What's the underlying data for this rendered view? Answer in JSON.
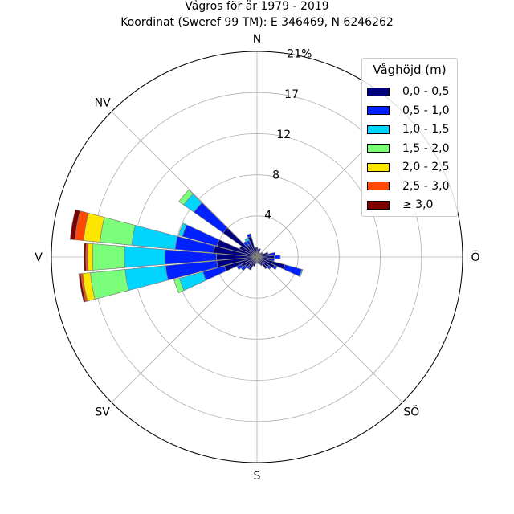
{
  "title_line1": "Vågros för år 1979 - 2019",
  "title_line2": "Koordinat (Sweref 99 TM): E 346469, N 6246262",
  "chart_data": {
    "type": "polar-stacked-bar",
    "title": "Vågros för år 1979 - 2019",
    "subtitle": "Koordinat (Sweref 99 TM): E 346469, N 6246262",
    "directions": [
      "N",
      "NV",
      "V",
      "SV",
      "S",
      "SÖ",
      "Ö",
      ""
    ],
    "radial_ticks": [
      "4",
      "8",
      "12",
      "17",
      "21%"
    ],
    "radial_tick_values": [
      4.25,
      8.5,
      12.75,
      17,
      21.25
    ],
    "rmax": 21.25,
    "grid": true,
    "legend": {
      "title": "Våghöjd (m)",
      "placement": "top-right",
      "items": [
        {
          "label": "0,0 - 0,5",
          "color": "#00007f"
        },
        {
          "label": "0,5 - 1,0",
          "color": "#0020ff"
        },
        {
          "label": "1,0 - 1,5",
          "color": "#00d4ff"
        },
        {
          "label": "1,5 - 2,0",
          "color": "#7bff7b"
        },
        {
          "label": "2,0 - 2,5",
          "color": "#ffe600"
        },
        {
          "label": "2,5 - 3,0",
          "color": "#ff4800"
        },
        {
          "label": "≥ 3,0",
          "color": "#7f0000"
        }
      ]
    },
    "sector_width_deg": 10,
    "sectors": [
      {
        "direction_deg": 0,
        "values": [
          1.0
        ]
      },
      {
        "direction_deg": 10,
        "values": [
          0.8
        ]
      },
      {
        "direction_deg": 20,
        "values": [
          0.7,
          0.2
        ]
      },
      {
        "direction_deg": 30,
        "values": [
          0.5
        ]
      },
      {
        "direction_deg": 40,
        "values": [
          0.5
        ]
      },
      {
        "direction_deg": 50,
        "values": [
          0.7
        ]
      },
      {
        "direction_deg": 60,
        "values": [
          0.7
        ]
      },
      {
        "direction_deg": 70,
        "values": [
          1.2
        ]
      },
      {
        "direction_deg": 80,
        "values": [
          1.5,
          0.4
        ]
      },
      {
        "direction_deg": 90,
        "values": [
          1.8,
          0.6
        ]
      },
      {
        "direction_deg": 100,
        "values": [
          1.5,
          0.3
        ]
      },
      {
        "direction_deg": 110,
        "values": [
          3.0,
          1.8,
          0.1
        ]
      },
      {
        "direction_deg": 120,
        "values": [
          2.0,
          0.3
        ]
      },
      {
        "direction_deg": 130,
        "values": [
          1.5,
          0.3
        ]
      },
      {
        "direction_deg": 140,
        "values": [
          1.5
        ]
      },
      {
        "direction_deg": 150,
        "values": [
          1.0
        ]
      },
      {
        "direction_deg": 160,
        "values": [
          0.8
        ]
      },
      {
        "direction_deg": 170,
        "values": [
          0.7
        ]
      },
      {
        "direction_deg": 180,
        "values": [
          0.5
        ]
      },
      {
        "direction_deg": 190,
        "values": [
          0.5,
          0.2
        ]
      },
      {
        "direction_deg": 200,
        "values": [
          1.0
        ]
      },
      {
        "direction_deg": 210,
        "values": [
          1.5
        ]
      },
      {
        "direction_deg": 220,
        "values": [
          1.2,
          0.3
        ]
      },
      {
        "direction_deg": 230,
        "values": [
          1.5,
          0.5
        ]
      },
      {
        "direction_deg": 240,
        "values": [
          1.8,
          0.5
        ]
      },
      {
        "direction_deg": 250,
        "values": [
          3.5,
          2.3,
          2.5,
          0.6
        ]
      },
      {
        "direction_deg": 260,
        "values": [
          4.2,
          5.3,
          4.2,
          3.6,
          0.8,
          0.2,
          0.2
        ]
      },
      {
        "direction_deg": 270,
        "values": [
          4.2,
          5.3,
          4.2,
          3.3,
          0.5,
          0.2,
          0.2
        ]
      },
      {
        "direction_deg": 280,
        "values": [
          4.5,
          4.0,
          4.5,
          3.3,
          1.7,
          0.9,
          0.5
        ]
      },
      {
        "direction_deg": 290,
        "values": [
          4.3,
          3.7,
          0.4
        ]
      },
      {
        "direction_deg": 300,
        "values": [
          2.0
        ]
      },
      {
        "direction_deg": 310,
        "values": [
          4.3,
          3.7,
          1.3,
          0.6
        ]
      },
      {
        "direction_deg": 320,
        "values": [
          1.5,
          0.5
        ]
      },
      {
        "direction_deg": 330,
        "values": [
          1.5,
          0.4,
          0.3
        ]
      },
      {
        "direction_deg": 340,
        "values": [
          2.2,
          0.3
        ]
      },
      {
        "direction_deg": 350,
        "values": [
          1.0
        ]
      }
    ]
  }
}
